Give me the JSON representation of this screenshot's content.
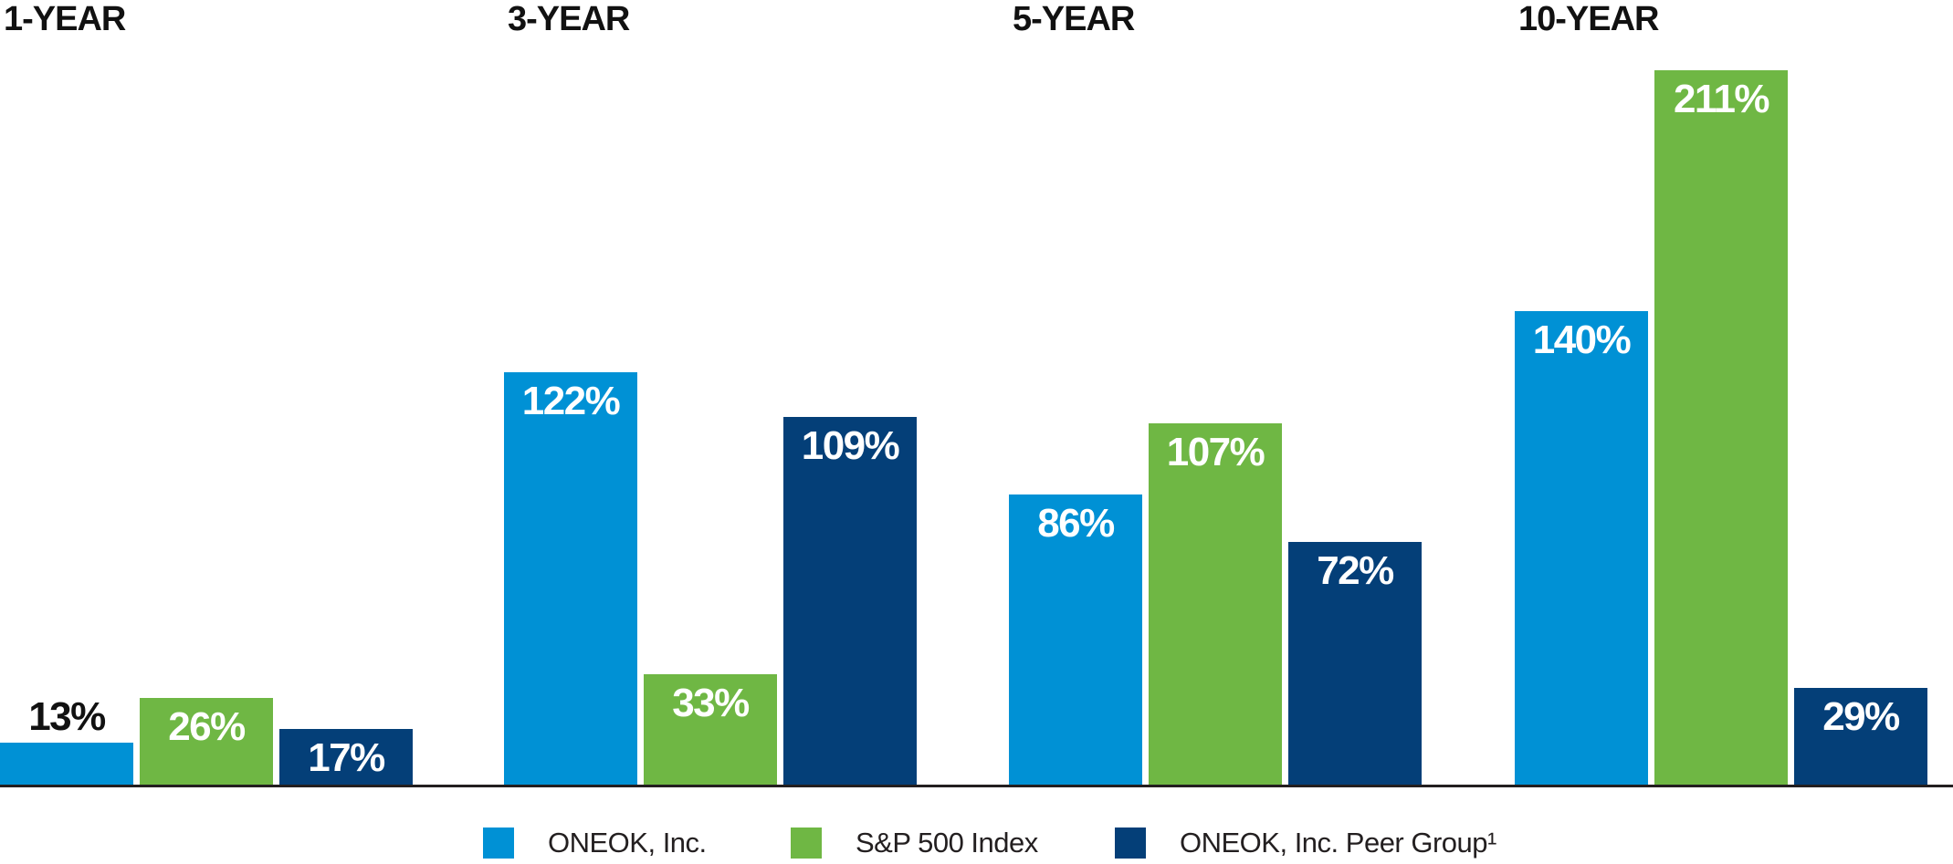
{
  "chart_data": {
    "type": "bar",
    "title": "",
    "categories": [
      "1-YEAR",
      "3-YEAR",
      "5-YEAR",
      "10-YEAR"
    ],
    "series": [
      {
        "name": "ONEOK, Inc.",
        "color": "#0091d5",
        "values": [
          13,
          122,
          86,
          140
        ]
      },
      {
        "name": "S&P 500 Index",
        "color": "#6fb744",
        "values": [
          26,
          33,
          107,
          211
        ]
      },
      {
        "name": "ONEOK, Inc. Peer Group¹",
        "color": "#043f78",
        "values": [
          17,
          109,
          72,
          29
        ]
      }
    ],
    "value_suffix": "%",
    "xlabel": "",
    "ylabel": "",
    "ylim": [
      0,
      230
    ],
    "grid": false,
    "axes_visible": false,
    "baseline_color": "#231f20",
    "legend_position": "bottom",
    "value_label_colors": {
      "inside": "#ffffff",
      "outside": "#111111"
    }
  }
}
